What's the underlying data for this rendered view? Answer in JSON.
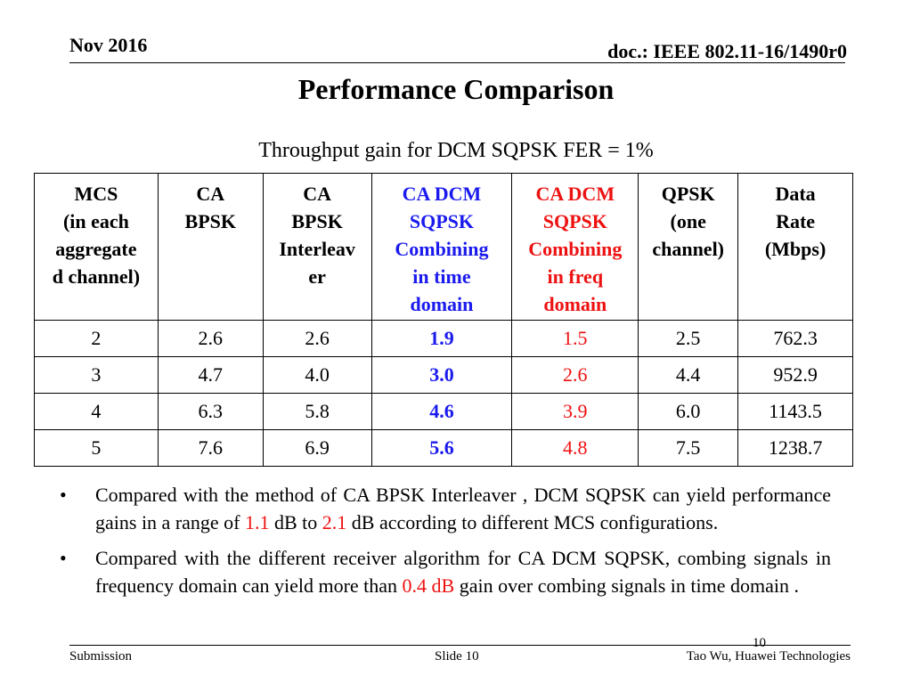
{
  "header": {
    "date": "Nov 2016",
    "doc": "doc.: IEEE 802.11-16/1490r0"
  },
  "title": "Performance Comparison",
  "subtitle": "Throughput gain for DCM SQPSK FER = 1%",
  "colors": {
    "time_domain": "#1a1aee",
    "freq_domain": "#ee1111"
  },
  "table": {
    "columns": [
      "MCS (in each aggregated channel)",
      "CA BPSK",
      "CA BPSK Interleaver",
      "CA DCM SQPSK Combining in time domain",
      "CA DCM SQPSK Combining in freq domain",
      "QPSK (one channel)",
      "Data Rate (Mbps)"
    ],
    "header_lines": [
      [
        "MCS",
        "(in each",
        "aggregate",
        "d channel)"
      ],
      [
        "CA",
        "BPSK"
      ],
      [
        "CA",
        "BPSK",
        "Interleav",
        "er"
      ],
      [
        "CA  DCM",
        "SQPSK",
        "Combining",
        "in time",
        "domain"
      ],
      [
        "CA  DCM",
        "SQPSK",
        "Combining",
        "in freq",
        "domain"
      ],
      [
        "QPSK",
        "(one",
        "channel)"
      ],
      [
        "Data",
        "Rate",
        "(Mbps)"
      ]
    ],
    "rows": [
      [
        "2",
        "2.6",
        "2.6",
        "1.9",
        "1.5",
        "2.5",
        "762.3"
      ],
      [
        "3",
        "4.7",
        "4.0",
        "3.0",
        "2.6",
        "4.4",
        "952.9"
      ],
      [
        "4",
        "6.3",
        "5.8",
        "4.6",
        "3.9",
        "6.0",
        "1143.5"
      ],
      [
        "5",
        "7.6",
        "6.9",
        "5.6",
        "4.8",
        "7.5",
        "1238.7"
      ]
    ]
  },
  "bullets": [
    {
      "dot": "•",
      "parts": [
        {
          "text": "Compared with the method of CA BPSK Interleaver , DCM SQPSK can yield performance gains in a range of ",
          "color": ""
        },
        {
          "text": "1.1",
          "color": "red"
        },
        {
          "text": " dB to ",
          "color": ""
        },
        {
          "text": "2.1",
          "color": "red"
        },
        {
          "text": " dB according to different MCS configurations.",
          "color": ""
        }
      ]
    },
    {
      "dot": "•",
      "parts": [
        {
          "text": "Compared with the different receiver algorithm for CA DCM SQPSK, combing signals in frequency domain can yield more than ",
          "color": ""
        },
        {
          "text": "0.4 dB",
          "color": "red"
        },
        {
          "text": " gain over combing signals in time domain .",
          "color": ""
        }
      ]
    }
  ],
  "footer": {
    "left": "Submission",
    "center": "Slide 10",
    "right": "Tao Wu, Huawei Technologies",
    "page_number": "10"
  }
}
